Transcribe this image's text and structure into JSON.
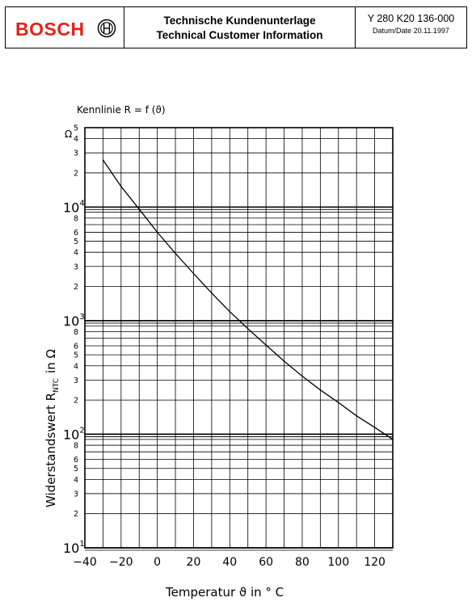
{
  "header": {
    "brand": "BOSCH",
    "title_de": "Technische Kundenunterlage",
    "title_en": "Technical Customer Information",
    "doc_number": "Y 280  K20 136-000",
    "date": "Datum/Date 20.11.1997"
  },
  "chart_data": {
    "type": "line",
    "title": "Kennlinie R = f  (ϑ)",
    "xlabel": "Temperatur ϑ in ° C",
    "ylabel_main": "Widerstandswert  R",
    "ylabel_sub": "NTC",
    "ylabel_unit": "in Ω",
    "y_unit_top": "Ω",
    "y_scale": "log",
    "xlim": [
      -40,
      130
    ],
    "ylim": [
      10,
      50000
    ],
    "grid": true,
    "x_ticks": [
      -40,
      -20,
      0,
      20,
      40,
      60,
      80,
      100,
      120
    ],
    "x_tick_labels": [
      "−40",
      "−20",
      "0",
      "20",
      "40",
      "60",
      "80",
      "100",
      "120"
    ],
    "y_decades": [
      {
        "value": 10,
        "base": "10",
        "exp": "1"
      },
      {
        "value": 100,
        "base": "10",
        "exp": "2"
      },
      {
        "value": 1000,
        "base": "10",
        "exp": "3"
      },
      {
        "value": 10000,
        "base": "10",
        "exp": "4"
      }
    ],
    "y_minor_labels": [
      "2",
      "3",
      "4",
      "5",
      "6",
      "8"
    ],
    "series": [
      {
        "x": [
          -30,
          -20,
          -10,
          0,
          10,
          20,
          30,
          40,
          50,
          60,
          70,
          80,
          90,
          100,
          110,
          120,
          130
        ],
        "y": [
          26000,
          15200,
          9600,
          6000,
          3900,
          2600,
          1750,
          1200,
          850,
          610,
          440,
          325,
          245,
          190,
          145,
          115,
          90
        ]
      }
    ]
  }
}
